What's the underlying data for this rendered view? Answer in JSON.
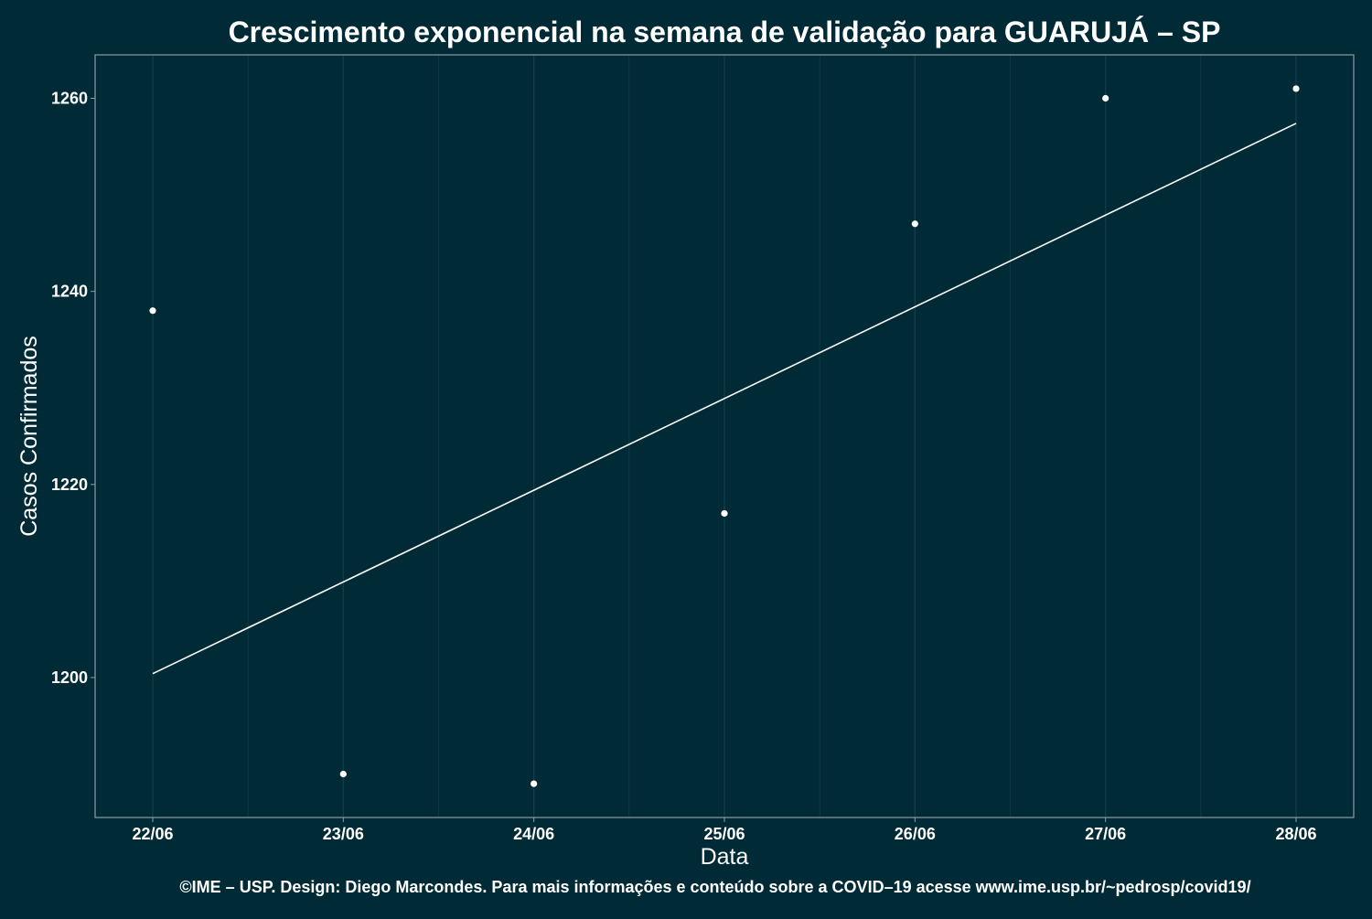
{
  "chart_data": {
    "type": "scatter",
    "title": "Crescimento exponencial na semana de validação para GUARUJÁ – SP",
    "xlabel": "Data",
    "ylabel": "Casos Confirmados",
    "caption": "©IME – USP. Design: Diego Marcondes. Para mais informações e conteúdo sobre a COVID–19 acesse www.ime.usp.br/~pedrosp/covid19/",
    "categories": [
      "22/06",
      "23/06",
      "24/06",
      "25/06",
      "26/06",
      "27/06",
      "28/06"
    ],
    "series": [
      {
        "values": [
          1238,
          1190,
          1189,
          1217,
          1247,
          1260,
          1261
        ]
      }
    ],
    "fit_line": {
      "start": 1200.4,
      "end": 1257.4
    },
    "ylim": [
      1185.5,
      1264.5
    ],
    "yticks": [
      1200,
      1220,
      1240,
      1260
    ],
    "grid": true,
    "legend": "none",
    "colors": {
      "background": "#002b36",
      "grid": "#0f3d48",
      "border": "#8a9ea3",
      "points": "#ffffff",
      "line": "#ffffff",
      "text": "#ffffff"
    }
  }
}
